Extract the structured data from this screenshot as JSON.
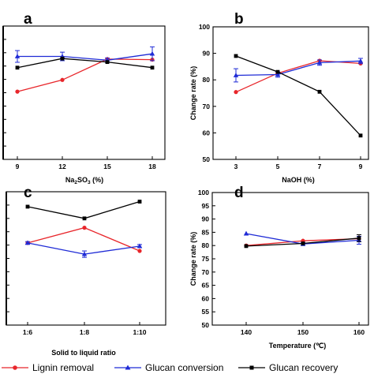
{
  "chart_data": [
    {
      "panel": "a",
      "type": "line",
      "xlabel_html": "Na2SO3 (%)",
      "xlabel_parts": {
        "pre": "Na",
        "sub1": "2",
        "mid": "SO",
        "sub2": "3",
        "post": " (%)"
      },
      "ylabel": "",
      "x": [
        9,
        12,
        15,
        18
      ],
      "x_tick_labels": [
        "9",
        "12",
        "15",
        "18"
      ],
      "ylim": [
        50,
        100
      ],
      "y_tick_labels_visible": false,
      "series": [
        {
          "name": "Lignin removal",
          "color": "#e8262b",
          "marker": "circle",
          "values": [
            75.4,
            79.8,
            87.6,
            87.4
          ],
          "err": [
            0,
            0,
            0,
            0
          ]
        },
        {
          "name": "Glucan conversion",
          "color": "#1f2bd6",
          "marker": "triangle",
          "values": [
            88.6,
            88.6,
            87.2,
            89.6
          ],
          "err": [
            2.2,
            1.6,
            0.8,
            2.6
          ]
        },
        {
          "name": "Glucan recovery",
          "color": "#000000",
          "marker": "square",
          "values": [
            84.4,
            87.8,
            86.5,
            84.4
          ],
          "err": [
            0,
            0,
            0,
            0
          ]
        }
      ]
    },
    {
      "panel": "b",
      "type": "line",
      "xlabel": "NaOH (%)",
      "ylabel": "Change rate (%)",
      "x": [
        3,
        5,
        7,
        9
      ],
      "x_tick_labels": [
        "3",
        "5",
        "7",
        "9"
      ],
      "ylim": [
        50,
        100
      ],
      "y_ticks": [
        50,
        60,
        70,
        80,
        90,
        100
      ],
      "series": [
        {
          "name": "Lignin removal",
          "color": "#e8262b",
          "marker": "circle",
          "values": [
            75.4,
            82.5,
            87.2,
            86.2
          ],
          "err": [
            0,
            0,
            0,
            0
          ]
        },
        {
          "name": "Glucan conversion",
          "color": "#1f2bd6",
          "marker": "triangle",
          "values": [
            81.7,
            82.0,
            86.5,
            87.1
          ],
          "err": [
            2.5,
            1.0,
            1.0,
            1.0
          ]
        },
        {
          "name": "Glucan recovery",
          "color": "#000000",
          "marker": "square",
          "values": [
            89.0,
            83.0,
            75.5,
            59.0
          ],
          "err": [
            0,
            0,
            0,
            0
          ]
        }
      ]
    },
    {
      "panel": "c",
      "type": "line",
      "xlabel": "Solid to liquid ratio",
      "ylabel": "",
      "x": [
        0,
        1,
        2
      ],
      "x_tick_labels": [
        "1:6",
        "1:8",
        "1:10"
      ],
      "ylim": [
        50,
        100
      ],
      "y_tick_labels_visible": false,
      "series": [
        {
          "name": "Lignin removal",
          "color": "#e8262b",
          "marker": "circle",
          "values": [
            80.8,
            86.5,
            77.8
          ],
          "err": [
            0,
            0,
            0
          ]
        },
        {
          "name": "Glucan conversion",
          "color": "#1f2bd6",
          "marker": "triangle",
          "values": [
            80.8,
            76.6,
            79.6
          ],
          "err": [
            0.5,
            1.2,
            0.6
          ]
        },
        {
          "name": "Glucan recovery",
          "color": "#000000",
          "marker": "square",
          "values": [
            94.4,
            90.0,
            96.3
          ],
          "err": [
            0,
            0,
            0
          ]
        }
      ]
    },
    {
      "panel": "d",
      "type": "line",
      "xlabel": "Temperature (℃)",
      "ylabel": "Change rate (%)",
      "x": [
        140,
        150,
        160
      ],
      "x_tick_labels": [
        "140",
        "150",
        "160"
      ],
      "ylim": [
        50,
        100
      ],
      "y_ticks": [
        50,
        55,
        60,
        65,
        70,
        75,
        80,
        85,
        90,
        95,
        100
      ],
      "series": [
        {
          "name": "Lignin removal",
          "color": "#e8262b",
          "marker": "circle",
          "values": [
            80.0,
            81.8,
            82.6
          ],
          "err": [
            0,
            0,
            0
          ]
        },
        {
          "name": "Glucan conversion",
          "color": "#1f2bd6",
          "marker": "triangle",
          "values": [
            84.5,
            80.6,
            82.0
          ],
          "err": [
            0,
            0.6,
            1.5
          ]
        },
        {
          "name": "Glucan recovery",
          "color": "#000000",
          "marker": "square",
          "values": [
            79.8,
            80.8,
            82.8
          ],
          "err": [
            0,
            0,
            1.3
          ]
        }
      ]
    }
  ],
  "legend": [
    {
      "label": "Lignin removal",
      "color": "#e8262b",
      "marker": "circle"
    },
    {
      "label": "Glucan conversion",
      "color": "#1f2bd6",
      "marker": "triangle"
    },
    {
      "label": "Glucan recovery",
      "color": "#000000",
      "marker": "square"
    }
  ]
}
